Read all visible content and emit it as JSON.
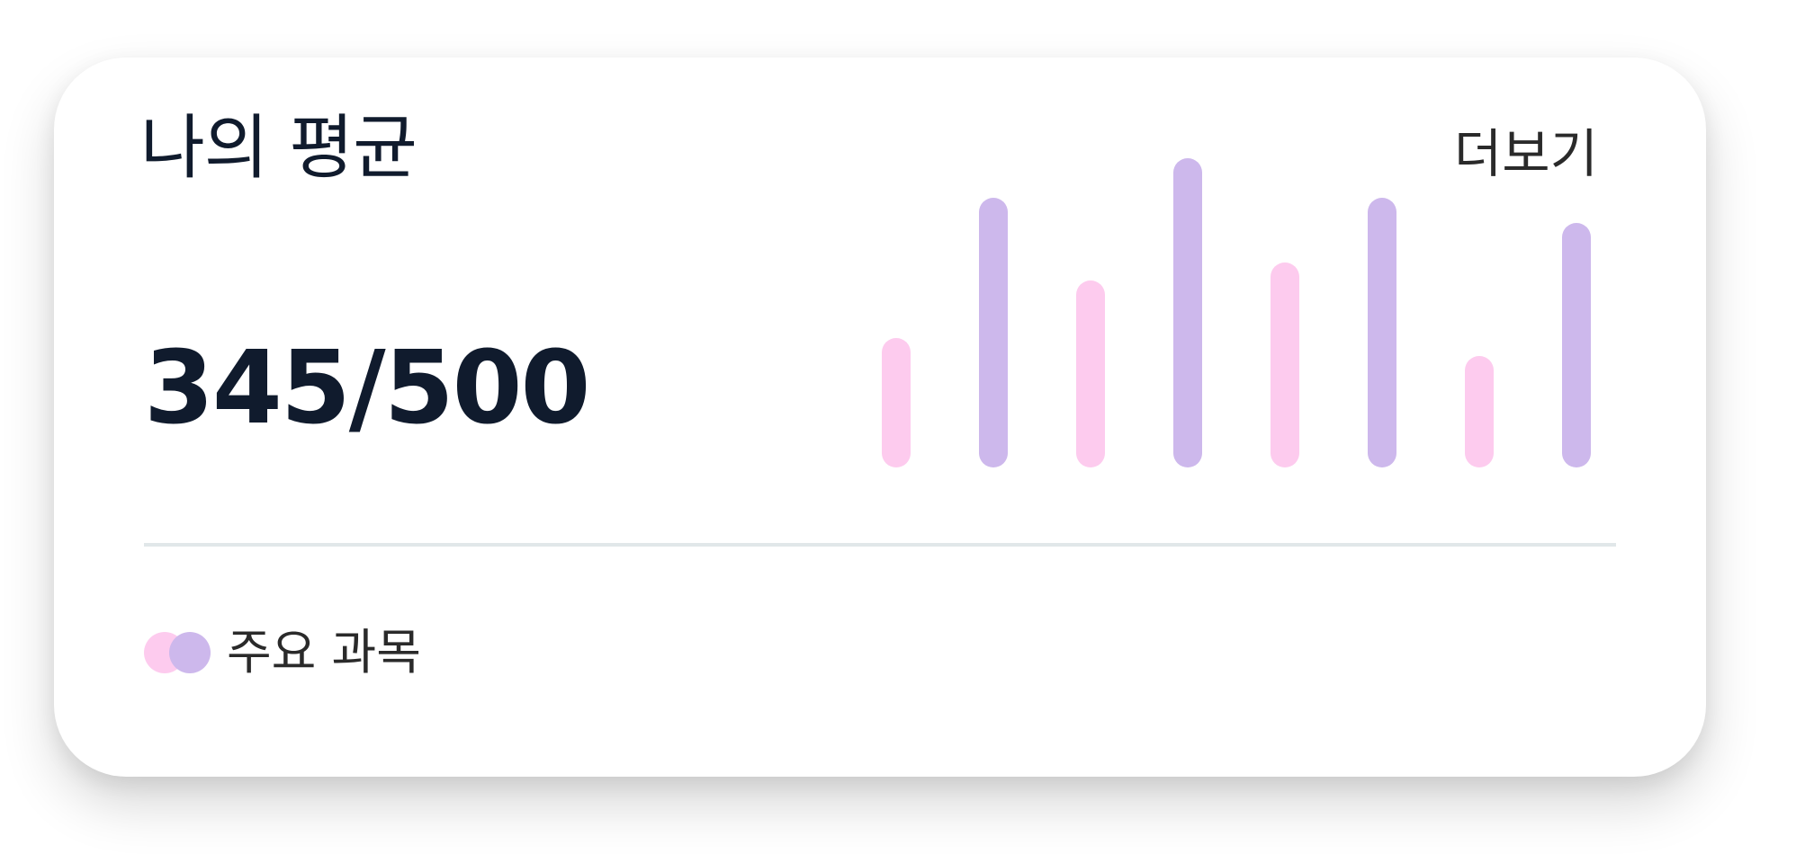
{
  "card": {
    "title": "나의 평균",
    "more_label": "더보기",
    "score": "345/500"
  },
  "legend": {
    "label": "주요 과목",
    "colors": [
      "#fdcbee",
      "#cdb8ec"
    ]
  },
  "colors": {
    "pink": "#fdcbee",
    "purple": "#cdb8ec",
    "text": "#101b2d",
    "divider": "#e1e7e9"
  },
  "chart_data": {
    "type": "bar",
    "values": [
      0.36,
      0.75,
      0.52,
      0.86,
      0.57,
      0.75,
      0.31,
      0.68
    ],
    "colors": [
      "#fdcbee",
      "#cdb8ec",
      "#fdcbee",
      "#cdb8ec",
      "#fdcbee",
      "#cdb8ec",
      "#fdcbee",
      "#cdb8ec"
    ],
    "ylim": [
      0,
      1
    ]
  }
}
